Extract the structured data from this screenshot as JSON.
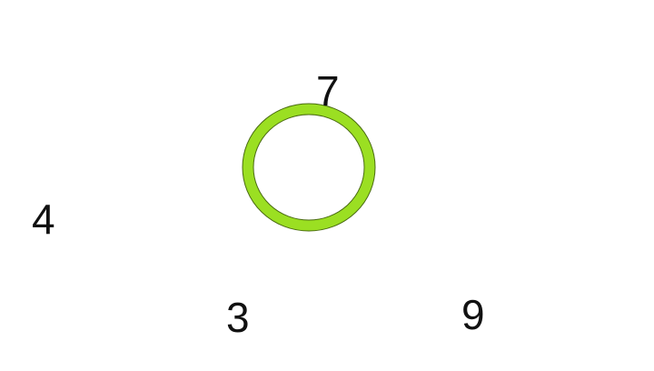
{
  "ring": {
    "color": "#9bdf22",
    "outline_color": "#4a6b12",
    "icon": "ring-icon"
  },
  "numbers": [
    {
      "value": "7"
    },
    {
      "value": "4"
    },
    {
      "value": "3"
    },
    {
      "value": "9"
    }
  ]
}
